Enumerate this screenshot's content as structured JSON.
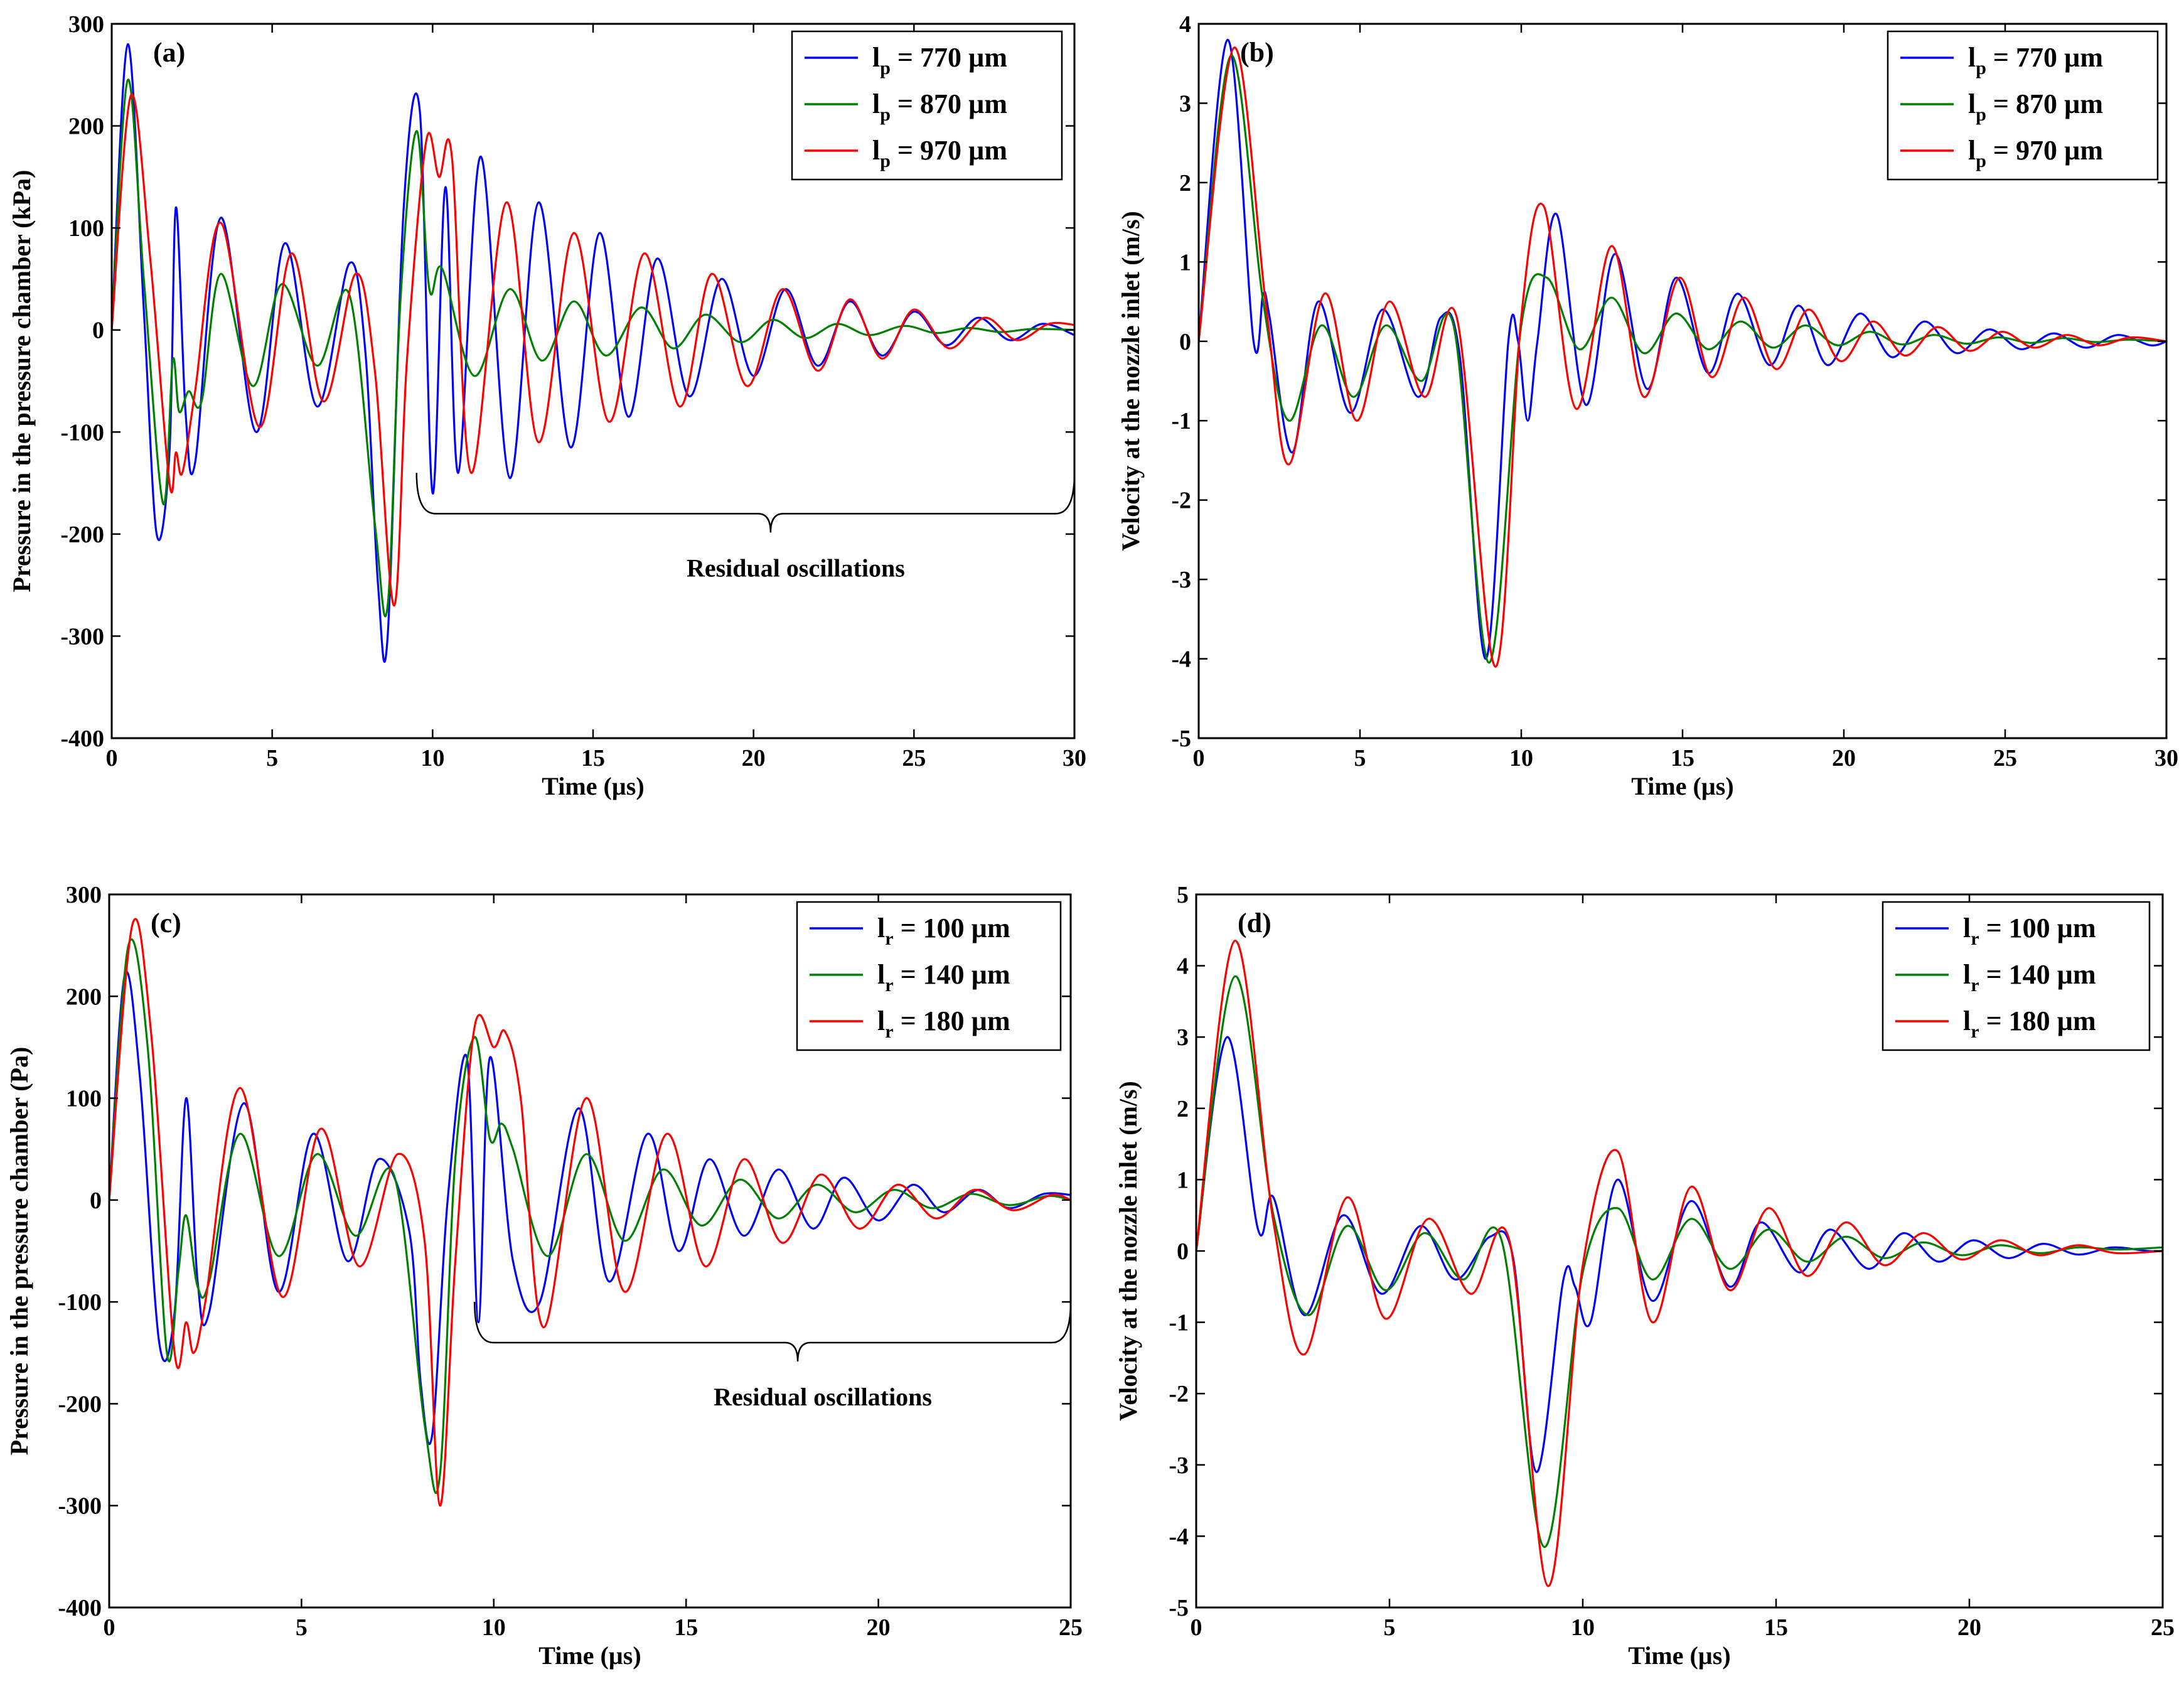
{
  "figure": {
    "colors": {
      "blue": "#0000ff",
      "green": "#008000",
      "red": "#ff0000",
      "axis": "#000000"
    }
  },
  "chart_data": [
    {
      "type": "line",
      "id": "a",
      "panel_label": "(a)",
      "xlabel": "Time (µs)",
      "ylabel": "Pressure in the pressure chamber (kPa)",
      "xlim": [
        0,
        30
      ],
      "ylim": [
        -400,
        300
      ],
      "xticks": [
        0,
        5,
        10,
        15,
        20,
        25,
        30
      ],
      "yticks": [
        -400,
        -300,
        -200,
        -100,
        0,
        100,
        200,
        300
      ],
      "legend_position": "top-right",
      "legend_var": "p",
      "annotation": {
        "text": "Residual oscillations",
        "x_start": 9.5,
        "x_end": 30
      },
      "series": [
        {
          "name": "l_p = 770 µm",
          "legend_main": "l",
          "legend_sub": "p",
          "legend_value": " = 770 µm",
          "color": "#0000ff",
          "x": [
            0,
            0.5,
            1.0,
            1.4,
            1.8,
            2.0,
            2.3,
            2.6,
            3.4,
            4.5,
            5.4,
            6.4,
            7.4,
            7.9,
            8.3,
            8.6,
            9.1,
            9.6,
            10.0,
            10.4,
            10.8,
            11.5,
            12.4,
            13.3,
            14.3,
            15.2,
            16.1,
            17.0,
            18.0,
            19.0,
            20.0,
            21.0,
            22.0,
            23.0,
            24.0,
            25.0,
            26.0,
            27.0,
            28.0,
            29.0,
            30.0
          ],
          "y": [
            0,
            280,
            20,
            -200,
            -120,
            120,
            -80,
            -130,
            110,
            -100,
            85,
            -75,
            65,
            -20,
            -250,
            -300,
            120,
            215,
            -160,
            140,
            -140,
            170,
            -145,
            125,
            -115,
            95,
            -85,
            70,
            -65,
            50,
            -45,
            40,
            -35,
            28,
            -25,
            18,
            -15,
            12,
            -10,
            6,
            -5
          ]
        },
        {
          "name": "l_p = 870 µm",
          "legend_main": "l",
          "legend_sub": "p",
          "legend_value": " = 870 µm",
          "color": "#008000",
          "x": [
            0,
            0.5,
            1.0,
            1.6,
            1.9,
            2.1,
            2.4,
            2.8,
            3.4,
            4.4,
            5.3,
            6.4,
            7.4,
            8.2,
            8.6,
            9.0,
            9.5,
            9.9,
            10.3,
            11.3,
            12.4,
            13.4,
            14.4,
            15.4,
            16.5,
            17.5,
            18.5,
            19.6,
            20.6,
            21.6,
            22.6,
            23.6,
            24.7,
            25.7,
            26.7,
            27.7,
            28.7,
            30.0
          ],
          "y": [
            0,
            245,
            50,
            -170,
            -30,
            -80,
            -60,
            -70,
            55,
            -55,
            45,
            -35,
            35,
            -190,
            -270,
            30,
            195,
            40,
            60,
            -45,
            40,
            -30,
            28,
            -25,
            22,
            -18,
            15,
            -12,
            10,
            -8,
            6,
            -5,
            4,
            -3,
            2,
            -2,
            1,
            0
          ]
        },
        {
          "name": "l_p = 970 µm",
          "legend_main": "l",
          "legend_sub": "p",
          "legend_value": " = 970 µm",
          "color": "#ff0000",
          "x": [
            0,
            0.6,
            1.2,
            1.8,
            2.0,
            2.2,
            2.6,
            3.4,
            4.6,
            5.6,
            6.6,
            7.6,
            8.2,
            8.8,
            9.2,
            9.8,
            10.2,
            10.6,
            11.2,
            12.3,
            13.3,
            14.4,
            15.5,
            16.6,
            17.7,
            18.7,
            19.8,
            20.9,
            22.0,
            23.0,
            24.0,
            25.0,
            26.1,
            27.2,
            28.2,
            29.2,
            30.0
          ],
          "y": [
            0,
            230,
            70,
            -150,
            -120,
            -140,
            -60,
            105,
            -95,
            75,
            -70,
            55,
            -40,
            -270,
            -30,
            185,
            150,
            170,
            -140,
            125,
            -110,
            95,
            -90,
            75,
            -75,
            55,
            -55,
            40,
            -40,
            30,
            -28,
            20,
            -18,
            12,
            -10,
            6,
            5
          ]
        }
      ]
    },
    {
      "type": "line",
      "id": "b",
      "panel_label": "(b)",
      "xlabel": "Time (µs)",
      "ylabel": "Velocity at the nozzle inlet (m/s)",
      "xlim": [
        0,
        30
      ],
      "ylim": [
        -5,
        4
      ],
      "xticks": [
        0,
        5,
        10,
        15,
        20,
        25,
        30
      ],
      "yticks": [
        -5,
        -4,
        -3,
        -2,
        -1,
        0,
        1,
        2,
        3,
        4
      ],
      "legend_position": "top-right",
      "legend_var": "p",
      "series": [
        {
          "name": "l_p = 770 µm",
          "legend_main": "l",
          "legend_sub": "p",
          "legend_value": " = 770 µm",
          "color": "#0000ff",
          "x": [
            0,
            0.9,
            1.7,
            2.0,
            2.2,
            2.9,
            3.7,
            4.7,
            5.7,
            6.8,
            7.5,
            8.1,
            8.9,
            9.6,
            9.9,
            10.2,
            10.5,
            11.1,
            12.0,
            12.9,
            13.9,
            14.8,
            15.8,
            16.7,
            17.7,
            18.6,
            19.5,
            20.5,
            21.5,
            22.5,
            23.5,
            24.5,
            25.5,
            26.5,
            27.5,
            28.5,
            29.5,
            30.0
          ],
          "y": [
            0,
            3.8,
            0.0,
            0.6,
            0.3,
            -1.4,
            0.5,
            -0.9,
            0.4,
            -0.7,
            0.3,
            -0.2,
            -4.0,
            0.0,
            0.0,
            -1.0,
            0.0,
            1.6,
            -0.8,
            1.1,
            -0.6,
            0.8,
            -0.4,
            0.6,
            -0.3,
            0.45,
            -0.3,
            0.35,
            -0.2,
            0.25,
            -0.15,
            0.15,
            -0.1,
            0.1,
            -0.08,
            0.08,
            -0.05,
            0.0
          ]
        },
        {
          "name": "l_p = 870 µm",
          "legend_main": "l",
          "legend_sub": "p",
          "legend_value": " = 870 µm",
          "color": "#008000",
          "x": [
            0,
            1.0,
            2.0,
            2.8,
            3.8,
            4.8,
            5.8,
            6.9,
            7.9,
            9.0,
            10.0,
            10.8,
            11.8,
            12.8,
            13.8,
            14.8,
            15.8,
            16.8,
            17.8,
            18.8,
            19.8,
            20.8,
            21.8,
            22.8,
            23.8,
            24.8,
            25.8,
            26.8,
            27.8,
            28.8,
            30.0
          ],
          "y": [
            0,
            3.6,
            0.5,
            -1.0,
            0.2,
            -0.7,
            0.2,
            -0.5,
            0.2,
            -4.05,
            0.2,
            0.8,
            -0.1,
            0.55,
            -0.15,
            0.35,
            -0.1,
            0.25,
            -0.08,
            0.2,
            -0.05,
            0.12,
            -0.04,
            0.08,
            -0.03,
            0.05,
            -0.02,
            0.04,
            -0.01,
            0.02,
            0.0
          ]
        },
        {
          "name": "l_p = 970 µm",
          "legend_main": "l",
          "legend_sub": "p",
          "legend_value": " = 970 µm",
          "color": "#ff0000",
          "x": [
            0,
            1.1,
            2.1,
            2.8,
            3.9,
            4.9,
            5.9,
            7.0,
            8.0,
            9.2,
            10.0,
            10.7,
            11.7,
            12.8,
            13.8,
            14.9,
            15.9,
            16.9,
            17.9,
            18.9,
            19.9,
            20.9,
            21.9,
            22.9,
            23.9,
            24.9,
            25.9,
            26.9,
            27.9,
            28.9,
            30.0
          ],
          "y": [
            0,
            3.7,
            0.4,
            -1.55,
            0.6,
            -1.0,
            0.5,
            -0.7,
            0.3,
            -4.1,
            0.3,
            1.7,
            -0.85,
            1.2,
            -0.7,
            0.8,
            -0.45,
            0.55,
            -0.35,
            0.4,
            -0.25,
            0.25,
            -0.18,
            0.18,
            -0.12,
            0.12,
            -0.08,
            0.08,
            -0.05,
            0.05,
            0.0
          ]
        }
      ]
    },
    {
      "type": "line",
      "id": "c",
      "panel_label": "(c)",
      "xlabel": "Time (µs)",
      "ylabel": "Pressure in the pressure chamber (Pa)",
      "xlim": [
        0,
        25
      ],
      "ylim": [
        -400,
        300
      ],
      "xticks": [
        0,
        5,
        10,
        15,
        20,
        25
      ],
      "yticks": [
        -400,
        -300,
        -200,
        -100,
        0,
        100,
        200,
        300
      ],
      "legend_position": "top-right",
      "legend_var": "r",
      "annotation": {
        "text": "Residual oscillations",
        "x_start": 9.5,
        "x_end": 25
      },
      "series": [
        {
          "name": "l_r = 100 µm",
          "legend_main": "l",
          "legend_sub": "r",
          "legend_value": " = 100 µm",
          "color": "#0000ff",
          "x": [
            0,
            0.4,
            0.8,
            1.3,
            1.7,
            2.0,
            2.3,
            2.6,
            3.5,
            4.4,
            5.3,
            6.2,
            7.0,
            7.8,
            8.1,
            8.4,
            8.8,
            9.3,
            9.6,
            9.9,
            10.5,
            11.2,
            12.2,
            13.0,
            14.0,
            14.8,
            15.6,
            16.5,
            17.4,
            18.3,
            19.1,
            20.0,
            20.9,
            21.7,
            22.6,
            23.4,
            24.3,
            25.0
          ],
          "y": [
            0,
            220,
            120,
            -140,
            -110,
            100,
            -80,
            -110,
            95,
            -90,
            65,
            -60,
            40,
            -30,
            -180,
            -230,
            0,
            140,
            -120,
            140,
            -60,
            -100,
            90,
            -80,
            65,
            -50,
            40,
            -35,
            30,
            -28,
            22,
            -20,
            15,
            -12,
            10,
            -8,
            6,
            5
          ]
        },
        {
          "name": "l_r = 140 µm",
          "legend_main": "l",
          "legend_sub": "r",
          "legend_value": " = 140 µm",
          "color": "#008000",
          "x": [
            0,
            0.5,
            1.0,
            1.5,
            1.8,
            2.0,
            2.3,
            2.6,
            3.4,
            4.4,
            5.4,
            6.4,
            7.4,
            8.2,
            8.6,
            9.0,
            9.5,
            9.9,
            10.2,
            10.5,
            11.4,
            12.4,
            13.4,
            14.4,
            15.4,
            16.4,
            17.4,
            18.4,
            19.4,
            20.4,
            21.4,
            22.4,
            23.4,
            24.4,
            25.0
          ],
          "y": [
            0,
            250,
            150,
            -150,
            -70,
            -15,
            -85,
            -80,
            65,
            -55,
            45,
            -35,
            25,
            -220,
            -270,
            40,
            160,
            60,
            75,
            50,
            -55,
            45,
            -40,
            30,
            -25,
            20,
            -18,
            15,
            -12,
            10,
            -8,
            6,
            -5,
            4,
            0
          ]
        },
        {
          "name": "l_r = 180 µm",
          "legend_main": "l",
          "legend_sub": "r",
          "legend_value": " = 180 µm",
          "color": "#ff0000",
          "x": [
            0,
            0.6,
            1.1,
            1.7,
            2.0,
            2.2,
            2.5,
            3.4,
            4.5,
            5.5,
            6.5,
            7.5,
            8.2,
            8.6,
            9.0,
            9.5,
            10.0,
            10.3,
            10.7,
            11.3,
            12.4,
            13.4,
            14.5,
            15.5,
            16.5,
            17.5,
            18.5,
            19.5,
            20.5,
            21.5,
            22.5,
            23.5,
            24.5,
            25.0
          ],
          "y": [
            0,
            270,
            160,
            -150,
            -120,
            -150,
            -100,
            110,
            -95,
            70,
            -65,
            45,
            -40,
            -300,
            -60,
            170,
            150,
            165,
            100,
            -125,
            100,
            -90,
            65,
            -65,
            40,
            -42,
            25,
            -28,
            15,
            -18,
            10,
            -10,
            5,
            0
          ]
        }
      ]
    },
    {
      "type": "line",
      "id": "d",
      "panel_label": "(d)",
      "xlabel": "Time (µs)",
      "ylabel": "Velocity at the nozzle inlet (m/s)",
      "xlim": [
        0,
        25
      ],
      "ylim": [
        -5,
        5
      ],
      "xticks": [
        0,
        5,
        10,
        15,
        20,
        25
      ],
      "yticks": [
        -5,
        -4,
        -3,
        -2,
        -1,
        0,
        1,
        2,
        3,
        4,
        5
      ],
      "legend_position": "top-right",
      "legend_var": "r",
      "series": [
        {
          "name": "l_r = 100 µm",
          "legend_main": "l",
          "legend_sub": "r",
          "legend_value": " = 100 µm",
          "color": "#0000ff",
          "x": [
            0,
            0.8,
            1.6,
            2.0,
            2.8,
            3.8,
            4.8,
            5.8,
            6.7,
            7.6,
            8.2,
            8.8,
            9.5,
            9.8,
            10.2,
            10.9,
            11.8,
            12.8,
            13.8,
            14.6,
            15.6,
            16.4,
            17.4,
            18.3,
            19.2,
            20.1,
            21.0,
            21.9,
            22.8,
            23.7,
            24.6,
            25.0
          ],
          "y": [
            0,
            3.0,
            0.3,
            0.75,
            -0.9,
            0.5,
            -0.6,
            0.35,
            -0.4,
            0.2,
            -0.1,
            -3.1,
            -0.4,
            -0.5,
            -1.0,
            1.0,
            -0.7,
            0.7,
            -0.5,
            0.4,
            -0.3,
            0.3,
            -0.25,
            0.25,
            -0.15,
            0.15,
            -0.1,
            0.1,
            -0.05,
            0.05,
            0.0,
            0.0
          ]
        },
        {
          "name": "l_r = 140 µm",
          "legend_main": "l",
          "legend_sub": "r",
          "legend_value": " = 140 µm",
          "color": "#008000",
          "x": [
            0,
            1.0,
            2.0,
            2.9,
            3.9,
            4.9,
            5.9,
            6.9,
            7.9,
            9.0,
            10.0,
            10.9,
            11.8,
            12.8,
            13.8,
            14.8,
            15.8,
            16.8,
            17.8,
            18.8,
            19.8,
            20.8,
            21.8,
            22.8,
            23.8,
            25.0
          ],
          "y": [
            0,
            3.85,
            0.5,
            -0.9,
            0.35,
            -0.55,
            0.25,
            -0.4,
            0.15,
            -4.15,
            -0.3,
            0.6,
            -0.4,
            0.45,
            -0.25,
            0.3,
            -0.15,
            0.2,
            -0.1,
            0.12,
            -0.06,
            0.08,
            -0.03,
            0.05,
            0.02,
            0.05
          ]
        },
        {
          "name": "l_r = 180 µm",
          "legend_main": "l",
          "legend_sub": "r",
          "legend_value": " = 180 µm",
          "color": "#ff0000",
          "x": [
            0,
            1.0,
            2.0,
            2.8,
            3.9,
            4.9,
            6.0,
            7.1,
            8.1,
            9.1,
            10.0,
            10.9,
            11.8,
            12.8,
            13.8,
            14.8,
            15.8,
            16.8,
            17.8,
            18.8,
            19.8,
            20.8,
            21.8,
            22.8,
            23.8,
            25.0
          ],
          "y": [
            0,
            4.35,
            0.4,
            -1.45,
            0.75,
            -0.95,
            0.45,
            -0.6,
            0.15,
            -4.7,
            -0.2,
            1.4,
            -1.0,
            0.9,
            -0.55,
            0.6,
            -0.35,
            0.4,
            -0.2,
            0.25,
            -0.12,
            0.15,
            -0.06,
            0.08,
            -0.03,
            0.0
          ]
        }
      ]
    }
  ]
}
